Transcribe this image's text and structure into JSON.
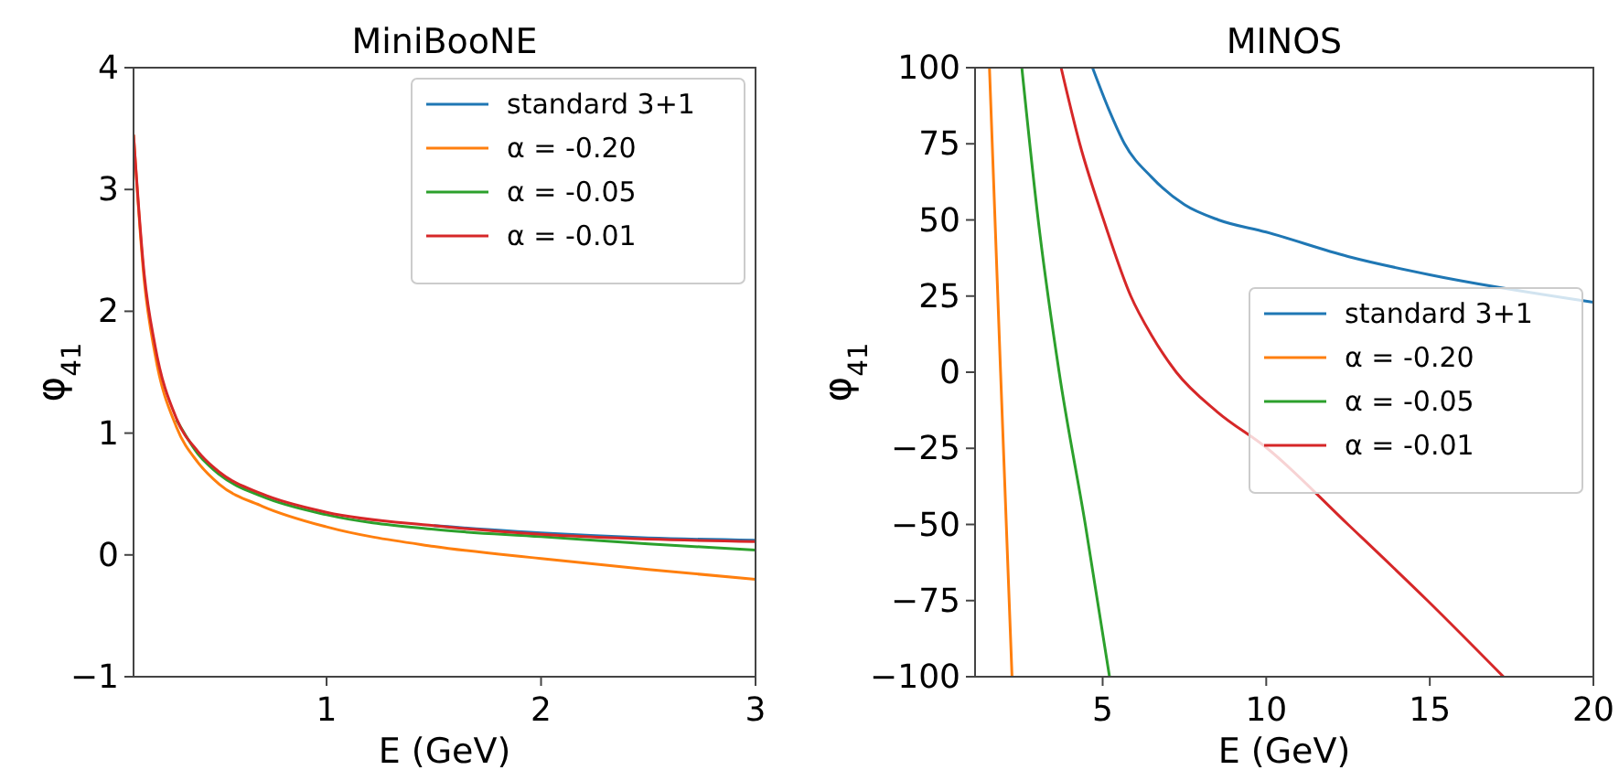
{
  "chart_data": [
    {
      "type": "line",
      "title": "MiniBooNE",
      "xlabel": "E (GeV)",
      "ylabel": "φ$_{41}$",
      "xlim": [
        0.1,
        3
      ],
      "ylim": [
        -1,
        4
      ],
      "xticks": [
        1,
        2,
        3
      ],
      "yticks": [
        {
          "value": -1,
          "label": "−1"
        },
        0,
        1,
        2,
        3,
        4
      ],
      "legend": "top right",
      "grid": false,
      "series": [
        {
          "name": "standard 3+1",
          "color": "#1f77b4",
          "x": [
            1.5,
            2,
            2.5,
            3
          ],
          "values": [
            0.24,
            0.18,
            0.14,
            0.12
          ]
        },
        {
          "name": "α = -0.20",
          "color": "#ff7f0e",
          "x": [
            0.1,
            0.15,
            0.2,
            0.3,
            0.4,
            0.5,
            0.7,
            1,
            1.5,
            2,
            2.5,
            3
          ],
          "values": [
            3.45,
            2.25,
            1.65,
            1.05,
            0.76,
            0.58,
            0.4,
            0.23,
            0.07,
            -0.03,
            -0.12,
            -0.2
          ]
        },
        {
          "name": "α = -0.05",
          "color": "#2ca02c",
          "x": [
            0.3,
            0.4,
            0.5,
            0.7,
            1,
            1.5,
            2,
            2.5,
            3
          ],
          "values": [
            1.11,
            0.83,
            0.66,
            0.48,
            0.33,
            0.21,
            0.15,
            0.09,
            0.04
          ]
        },
        {
          "name": "α = -0.01",
          "color": "#d62728",
          "x": [
            0.1,
            0.15,
            0.2,
            0.3,
            0.4,
            0.5,
            0.7,
            1,
            1.5,
            2,
            2.5,
            3
          ],
          "values": [
            3.45,
            2.3,
            1.72,
            1.12,
            0.85,
            0.68,
            0.5,
            0.35,
            0.24,
            0.17,
            0.13,
            0.11
          ]
        }
      ]
    },
    {
      "type": "line",
      "title": "MINOS",
      "xlabel": "E (GeV)",
      "ylabel": "φ$_{41}$",
      "xlim": [
        1.1,
        20
      ],
      "ylim": [
        -100,
        100
      ],
      "xticks": [
        5,
        10,
        15,
        20
      ],
      "yticks": [
        {
          "value": -100,
          "label": "−100"
        },
        {
          "value": -75,
          "label": "−75"
        },
        {
          "value": -50,
          "label": "−50"
        },
        {
          "value": -25,
          "label": "−25"
        },
        0,
        25,
        50,
        75,
        100
      ],
      "legend": "right",
      "grid": false,
      "series": [
        {
          "name": "standard 3+1",
          "color": "#1f77b4",
          "x": [
            4.69,
            5.2,
            5.67,
            6.5,
            7.5,
            8.54,
            10,
            12.5,
            15,
            20
          ],
          "values": [
            100,
            86,
            75,
            64,
            55,
            50,
            46,
            38,
            32,
            23
          ]
        },
        {
          "name": "α = -0.20",
          "color": "#ff7f0e",
          "x": [
            1.54,
            1.88,
            2.23
          ],
          "values": [
            100,
            0,
            -100
          ]
        },
        {
          "name": "α = -0.05",
          "color": "#2ca02c",
          "x": [
            2.53,
            3.03,
            3.67,
            4.47,
            5.21
          ],
          "values": [
            100,
            50,
            0,
            -50,
            -100
          ]
        },
        {
          "name": "α = -0.01",
          "color": "#d62728",
          "x": [
            3.73,
            4.3,
            5.03,
            5.86,
            6.5,
            7.25,
            8.5,
            10.03,
            12.5,
            14.93,
            17.25
          ],
          "values": [
            100,
            75,
            50,
            25,
            12,
            0,
            -13,
            -25,
            -50,
            -75,
            -100
          ]
        }
      ]
    }
  ]
}
